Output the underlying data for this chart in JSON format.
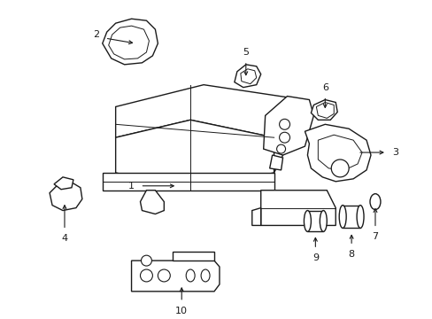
{
  "background_color": "#ffffff",
  "line_color": "#1a1a1a",
  "lw": 1.0,
  "fig_width": 4.89,
  "fig_height": 3.6,
  "dpi": 100
}
